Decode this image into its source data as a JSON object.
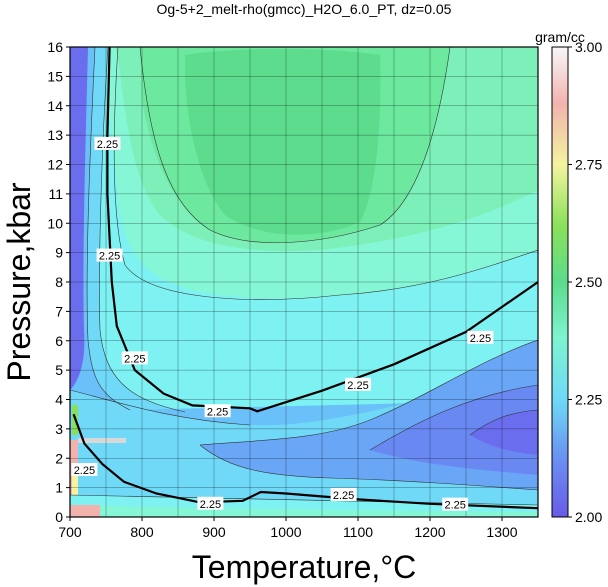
{
  "chart_data": {
    "type": "heatmap",
    "title": "Og-5+2_melt-rho(gmcc)_H2O_6.0_PT, dz=0.05",
    "xlabel": "Temperature,°C",
    "ylabel": "Pressure,kbar",
    "xlim": [
      700,
      1350
    ],
    "ylim": [
      0,
      16
    ],
    "x_ticks": [
      "700",
      "800",
      "900",
      "1000",
      "1100",
      "1200",
      "1300"
    ],
    "y_ticks": [
      "0",
      "1",
      "2",
      "3",
      "4",
      "5",
      "6",
      "7",
      "8",
      "9",
      "10",
      "11",
      "12",
      "13",
      "14",
      "15",
      "16"
    ],
    "grid": true,
    "colorbar": {
      "unit": "gram/cc",
      "range": [
        2.0,
        3.0
      ],
      "ticks": [
        "2.00",
        "2.25",
        "2.50",
        "2.75",
        "3.00"
      ],
      "position": "right"
    },
    "contour_interval": 0.05,
    "highlighted_contour": {
      "label": "2.25",
      "branches": [
        {
          "points": [
            [
              755,
              16
            ],
            [
              752,
              13
            ],
            [
              752,
              11
            ],
            [
              758,
              8
            ],
            [
              765,
              6.5
            ],
            [
              790,
              5
            ],
            [
              830,
              4.2
            ],
            [
              870,
              3.8
            ],
            [
              950,
              3.7
            ],
            [
              960,
              3.6
            ],
            [
              1050,
              4.3
            ],
            [
              1150,
              5.2
            ],
            [
              1250,
              6.3
            ],
            [
              1350,
              8
            ]
          ]
        },
        {
          "points": [
            [
              705,
              3.5
            ],
            [
              720,
              2.5
            ],
            [
              745,
              1.8
            ],
            [
              775,
              1.2
            ],
            [
              820,
              0.8
            ],
            [
              880,
              0.5
            ],
            [
              940,
              0.55
            ],
            [
              965,
              0.85
            ],
            [
              1000,
              0.8
            ],
            [
              1100,
              0.6
            ],
            [
              1200,
              0.45
            ],
            [
              1350,
              0.3
            ]
          ]
        }
      ],
      "label_positions": [
        [
          752,
          12.7
        ],
        [
          755,
          8.9
        ],
        [
          790,
          5.4
        ],
        [
          905,
          3.6
        ],
        [
          1100,
          4.5
        ],
        [
          1270,
          6.1
        ],
        [
          720,
          1.6
        ],
        [
          895,
          0.45
        ],
        [
          1080,
          0.75
        ],
        [
          1235,
          0.42
        ]
      ]
    },
    "regions": [
      {
        "level": "2.45-2.50",
        "color": "#5cdc8c"
      },
      {
        "level": "2.40-2.45",
        "color": "#6de89f"
      },
      {
        "level": "2.35-2.40",
        "color": "#7cf0b8"
      },
      {
        "level": "2.30-2.35",
        "color": "#86f7d6"
      },
      {
        "level": "2.25-2.30",
        "color": "#7ef1f3"
      },
      {
        "level": "2.20-2.25",
        "color": "#6fd9f7"
      },
      {
        "level": "2.15-2.20",
        "color": "#6ac0f8"
      },
      {
        "level": "2.10-2.15",
        "color": "#6aa6f6"
      },
      {
        "level": "2.05-2.10",
        "color": "#6a88f2"
      },
      {
        "level": "2.00-2.05",
        "color": "#6a6ded"
      }
    ]
  }
}
